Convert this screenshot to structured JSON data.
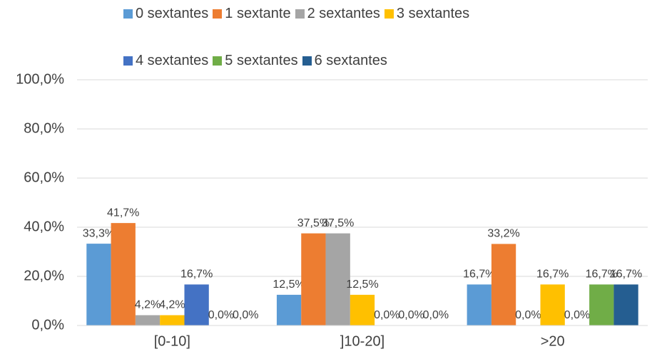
{
  "chart_data": {
    "type": "bar",
    "categories": [
      "[0-10]",
      "]10-20]",
      ">20"
    ],
    "series": [
      {
        "name": "0 sextantes",
        "color": "#5b9bd5",
        "values": [
          33.3,
          12.5,
          16.7
        ],
        "value_labels": [
          "33,3%",
          "12,5%",
          "16,7%"
        ]
      },
      {
        "name": "1 sextante",
        "color": "#ed7d31",
        "values": [
          41.7,
          37.5,
          33.2
        ],
        "value_labels": [
          "41,7%",
          "37,5%",
          "33,2%"
        ]
      },
      {
        "name": "2 sextantes",
        "color": "#a5a5a5",
        "values": [
          4.2,
          37.5,
          0.0
        ],
        "value_labels": [
          "4,2%",
          "37,5%",
          "0,0%"
        ]
      },
      {
        "name": "3 sextantes",
        "color": "#ffc000",
        "values": [
          4.2,
          12.5,
          16.7
        ],
        "value_labels": [
          "4,2%",
          "12,5%",
          "16,7%"
        ]
      },
      {
        "name": "4 sextantes",
        "color": "#4472c4",
        "values": [
          16.7,
          0.0,
          0.0
        ],
        "value_labels": [
          "16,7%",
          "0,0%",
          "0,0%"
        ]
      },
      {
        "name": "5 sextantes",
        "color": "#70ad47",
        "values": [
          0.0,
          0.0,
          16.7
        ],
        "value_labels": [
          "0,0%",
          "0,0%",
          "16,7%"
        ]
      },
      {
        "name": "6 sextantes",
        "color": "#255e91",
        "values": [
          0.0,
          0.0,
          16.7
        ],
        "value_labels": [
          "0,0%",
          "0,0%",
          "16,7%"
        ]
      }
    ],
    "ylim": [
      0,
      100
    ],
    "yticks": [
      {
        "value": 0,
        "label": "0,0%"
      },
      {
        "value": 20,
        "label": "20,0%"
      },
      {
        "value": 40,
        "label": "40,0%"
      },
      {
        "value": 60,
        "label": "60,0%"
      },
      {
        "value": 80,
        "label": "80,0%"
      },
      {
        "value": 100,
        "label": "100,0%"
      }
    ],
    "grid": true,
    "legend": "top"
  }
}
